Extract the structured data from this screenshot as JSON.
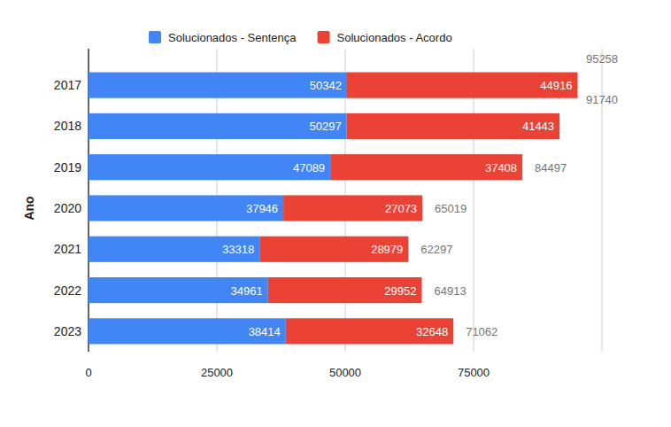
{
  "chart_data": {
    "type": "bar",
    "orientation": "horizontal",
    "stacked": true,
    "grid": true,
    "data_labels": true,
    "legend": "top",
    "y_label": "Ano",
    "categories": [
      "2017",
      "2018",
      "2019",
      "2020",
      "2021",
      "2022",
      "2023"
    ],
    "series": [
      {
        "name": "Solucionados - Sentença",
        "color": "#4285f4",
        "values": [
          50342,
          50297,
          47089,
          37946,
          33318,
          34961,
          38414
        ]
      },
      {
        "name": "Solucionados - Acordo",
        "color": "#ea4335",
        "values": [
          44916,
          41443,
          37408,
          27073,
          28979,
          29952,
          32648
        ]
      }
    ],
    "totals": [
      95258,
      91740,
      84497,
      65019,
      62297,
      64913,
      71062
    ],
    "xlim": [
      0,
      100000
    ],
    "xticks": [
      0,
      25000,
      50000,
      75000
    ]
  }
}
